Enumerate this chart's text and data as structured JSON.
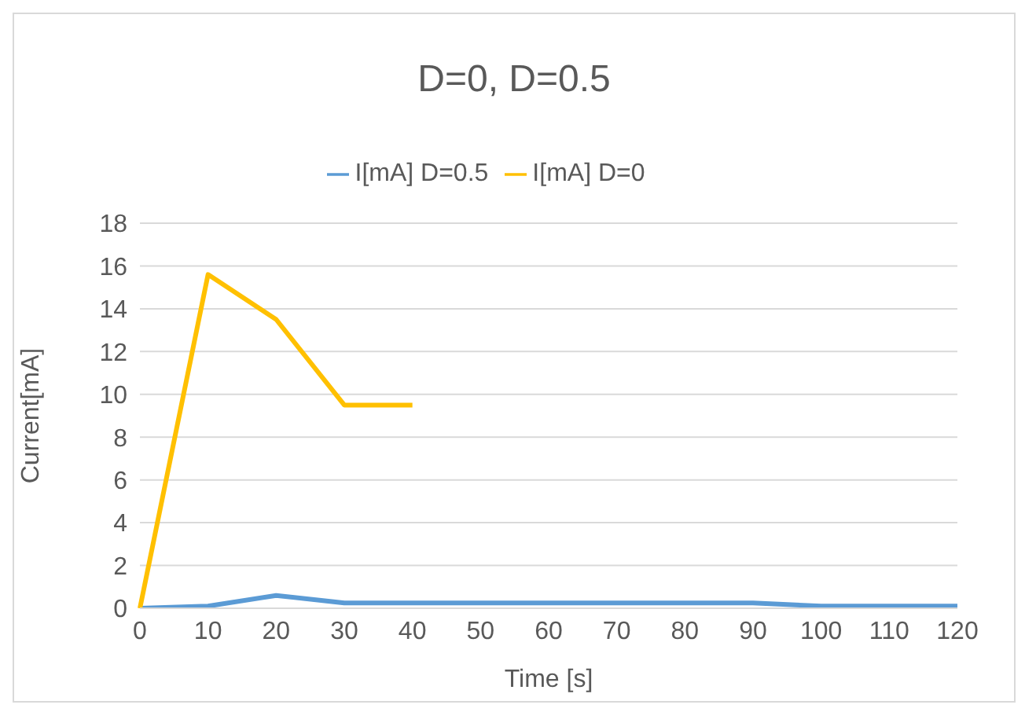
{
  "chart_data": {
    "type": "line",
    "title": "D=0, D=0.5",
    "xlabel": "Time [s]",
    "ylabel": "Current[mA]",
    "categories": [
      "0",
      "10",
      "20",
      "30",
      "40",
      "50",
      "60",
      "70",
      "80",
      "90",
      "100",
      "110",
      "120"
    ],
    "series": [
      {
        "name": "I[mA] D=0.5",
        "color": "#5b9bd5",
        "values": [
          0,
          0.1,
          0.6,
          0.25,
          0.25,
          0.25,
          0.25,
          0.25,
          0.25,
          0.25,
          0.1,
          0.1,
          0.1
        ]
      },
      {
        "name": "I[mA] D=0",
        "color": "#ffc000",
        "values": [
          0,
          15.6,
          13.5,
          9.5,
          9.5,
          null,
          null,
          null,
          null,
          null,
          null,
          null,
          null
        ]
      }
    ],
    "ylim": [
      0,
      18
    ],
    "yticks": [
      0,
      2,
      4,
      6,
      8,
      10,
      12,
      14,
      16,
      18
    ],
    "grid": "y",
    "legend": "top",
    "marker": "none"
  }
}
